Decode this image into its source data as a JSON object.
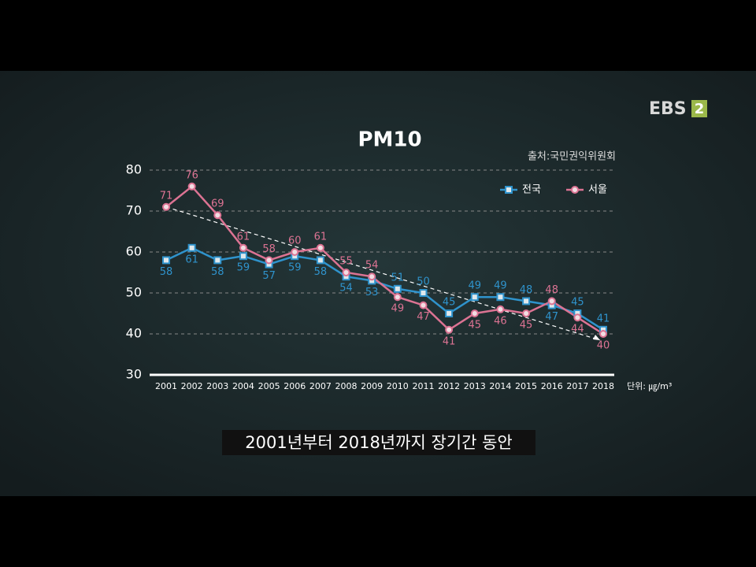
{
  "logo": {
    "text": "EBS",
    "badge": "2"
  },
  "caption": "2001년부터 2018년까지 장기간 동안",
  "chart_data": {
    "type": "line",
    "title": "PM10",
    "source": "출처:국민권익위원회",
    "unit": "단위: ㎍/m³",
    "categories": [
      "2001",
      "2002",
      "2003",
      "2004",
      "2005",
      "2006",
      "2007",
      "2008",
      "2009",
      "2010",
      "2011",
      "2012",
      "2013",
      "2014",
      "2015",
      "2016",
      "2017",
      "2018"
    ],
    "series": [
      {
        "name": "전국",
        "color": "#2f93cc",
        "marker": "square",
        "values": [
          58,
          61,
          58,
          59,
          57,
          59,
          58,
          54,
          53,
          51,
          50,
          45,
          49,
          49,
          48,
          47,
          45,
          41
        ]
      },
      {
        "name": "서울",
        "color": "#dc7393",
        "marker": "circle",
        "values": [
          71,
          76,
          69,
          61,
          58,
          60,
          61,
          55,
          54,
          49,
          47,
          41,
          45,
          46,
          45,
          48,
          44,
          40
        ]
      }
    ],
    "ylim": [
      30,
      80
    ],
    "yticks": [
      30,
      40,
      50,
      60,
      70,
      80
    ],
    "grid": true,
    "legend": "top-right"
  }
}
